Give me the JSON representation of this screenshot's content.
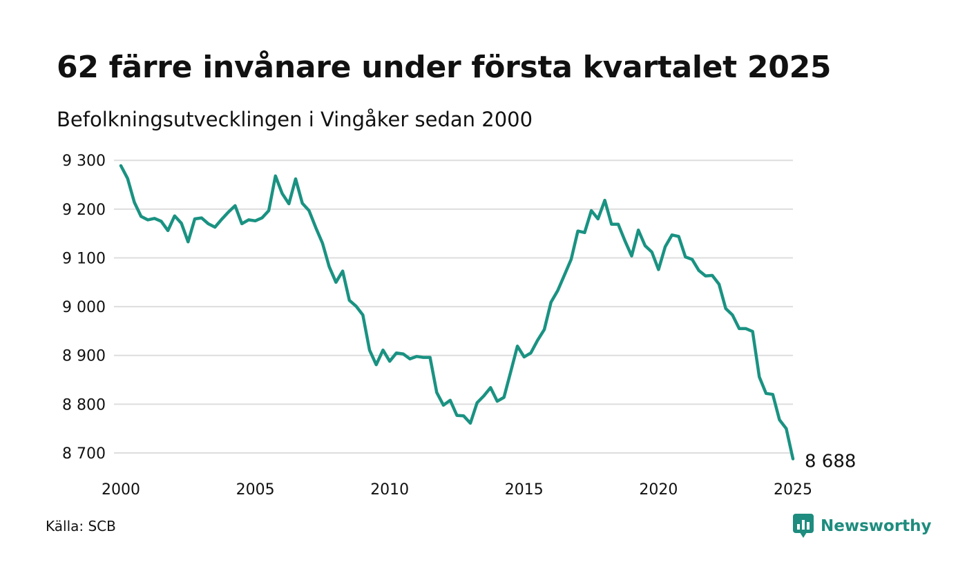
{
  "header": {
    "title": "62 färre invånare under första kvartalet 2025",
    "subtitle": "Befolkningsutvecklingen i Vingåker sedan 2000"
  },
  "footer": {
    "source": "Källa: SCB",
    "brand": "Newsworthy",
    "brand_icon": "chart-bubble-icon",
    "brand_color": "#1e8c7e"
  },
  "chart_data": {
    "type": "line",
    "title": "62 färre invånare under första kvartalet 2025",
    "subtitle": "Befolkningsutvecklingen i Vingåker sedan 2000",
    "xlabel": "",
    "ylabel": "",
    "xlim": [
      2000,
      2025.25
    ],
    "ylim": [
      8670,
      9310
    ],
    "x_ticks": [
      2000,
      2005,
      2010,
      2015,
      2020,
      2025
    ],
    "x_tick_labels": [
      "2000",
      "2005",
      "2010",
      "2015",
      "2020",
      "2025"
    ],
    "y_ticks": [
      8700,
      8800,
      8900,
      9000,
      9100,
      9200,
      9300
    ],
    "y_tick_labels": [
      "8 700",
      "8 800",
      "8 900",
      "9 000",
      "9 100",
      "9 200",
      "9 300"
    ],
    "grid": "horizontal",
    "legend": "none",
    "line_color": "#1a9282",
    "end_label": "8 688",
    "series": [
      {
        "x": [
          2000.0,
          2000.25,
          2000.5,
          2000.75,
          2001.0,
          2001.25,
          2001.5,
          2001.75,
          2002.0,
          2002.25,
          2002.5,
          2002.75,
          2003.0,
          2003.25,
          2003.5,
          2003.75,
          2004.0,
          2004.25,
          2004.5,
          2004.75,
          2005.0,
          2005.25,
          2005.5,
          2005.75,
          2006.0,
          2006.25,
          2006.5,
          2006.75,
          2007.0,
          2007.25,
          2007.5,
          2007.75,
          2008.0,
          2008.25,
          2008.5,
          2008.75,
          2009.0,
          2009.25,
          2009.5,
          2009.75,
          2010.0,
          2010.25,
          2010.5,
          2010.75,
          2011.0,
          2011.25,
          2011.5,
          2011.75,
          2012.0,
          2012.25,
          2012.5,
          2012.75,
          2013.0,
          2013.25,
          2013.5,
          2013.75,
          2014.0,
          2014.25,
          2014.5,
          2014.75,
          2015.0,
          2015.25,
          2015.5,
          2015.75,
          2016.0,
          2016.25,
          2016.5,
          2016.75,
          2017.0,
          2017.25,
          2017.5,
          2017.75,
          2018.0,
          2018.25,
          2018.5,
          2018.75,
          2019.0,
          2019.25,
          2019.5,
          2019.75,
          2020.0,
          2020.25,
          2020.5,
          2020.75,
          2021.0,
          2021.25,
          2021.5,
          2021.75,
          2022.0,
          2022.25,
          2022.5,
          2022.75,
          2023.0,
          2023.25,
          2023.5,
          2023.75,
          2024.0,
          2024.25,
          2024.5,
          2024.75,
          2025.0
        ],
        "values": [
          9289,
          9263,
          9214,
          9185,
          9178,
          9181,
          9175,
          9156,
          9186,
          9171,
          9133,
          9180,
          9182,
          9170,
          9163,
          9179,
          9194,
          9207,
          9170,
          9178,
          9176,
          9182,
          9197,
          9268,
          9232,
          9211,
          9262,
          9212,
          9197,
          9162,
          9130,
          9082,
          9050,
          9073,
          9013,
          9001,
          8983,
          8911,
          8881,
          8911,
          8888,
          8905,
          8903,
          8893,
          8898,
          8896,
          8896,
          8824,
          8798,
          8808,
          8777,
          8776,
          8761,
          8803,
          8817,
          8834,
          8806,
          8814,
          8866,
          8919,
          8897,
          8905,
          8931,
          8953,
          9009,
          9033,
          9065,
          9097,
          9155,
          9152,
          9197,
          9180,
          9218,
          9169,
          9169,
          9135,
          9104,
          9157,
          9125,
          9112,
          9076,
          9123,
          9147,
          9144,
          9102,
          9097,
          9074,
          9063,
          9064,
          9046,
          8996,
          8983,
          8955,
          8955,
          8949,
          8856,
          8822,
          8820,
          8768,
          8750,
          8688
        ]
      }
    ]
  }
}
